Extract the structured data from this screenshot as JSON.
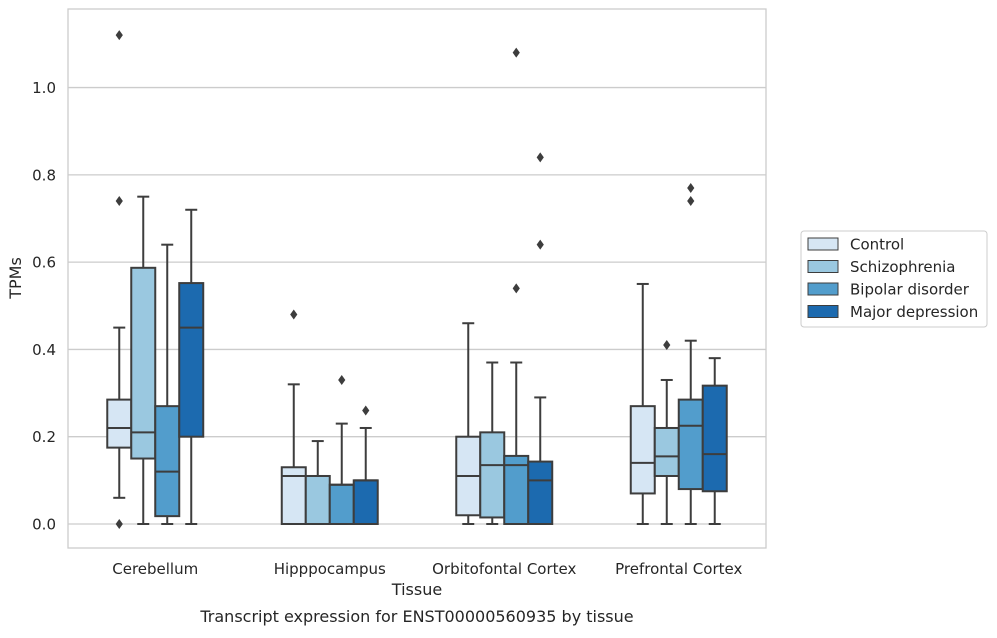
{
  "chart_data": {
    "type": "box",
    "title": "Transcript expression for ENST00000560935 by tissue",
    "xlabel": "Tissue",
    "ylabel": "TPMs",
    "ylim": [
      -0.055,
      1.18
    ],
    "yticks": [
      0.0,
      0.2,
      0.4,
      0.6,
      0.8,
      1.0
    ],
    "ytick_labels": [
      "0.0",
      "0.2",
      "0.4",
      "0.6",
      "0.8",
      "1.0"
    ],
    "grid": "horizontal",
    "legend_position": "right",
    "categories": [
      "Cerebellum",
      "Hipppocampus",
      "Orbitofontal Cortex",
      "Prefrontal Cortex"
    ],
    "series": [
      {
        "name": "Control",
        "color": "#d6e6f4",
        "boxes": [
          {
            "q1": 0.175,
            "median": 0.22,
            "q3": 0.285,
            "whislo": 0.06,
            "whishi": 0.45,
            "fliers": [
              0.74,
              1.12,
              0.0
            ]
          },
          {
            "q1": 0.0,
            "median": 0.11,
            "q3": 0.13,
            "whislo": 0.0,
            "whishi": 0.32,
            "fliers": [
              0.48
            ]
          },
          {
            "q1": 0.02,
            "median": 0.11,
            "q3": 0.2,
            "whislo": 0.0,
            "whishi": 0.46,
            "fliers": []
          },
          {
            "q1": 0.07,
            "median": 0.14,
            "q3": 0.27,
            "whislo": 0.0,
            "whishi": 0.55,
            "fliers": []
          }
        ]
      },
      {
        "name": "Schizophrenia",
        "color": "#9ac8e0",
        "boxes": [
          {
            "q1": 0.15,
            "median": 0.21,
            "q3": 0.587,
            "whislo": 0.0,
            "whishi": 0.75,
            "fliers": []
          },
          {
            "q1": 0.0,
            "median": 0.11,
            "q3": 0.11,
            "whislo": 0.0,
            "whishi": 0.19,
            "fliers": []
          },
          {
            "q1": 0.015,
            "median": 0.135,
            "q3": 0.21,
            "whislo": 0.0,
            "whishi": 0.37,
            "fliers": []
          },
          {
            "q1": 0.11,
            "median": 0.155,
            "q3": 0.22,
            "whislo": 0.0,
            "whishi": 0.33,
            "fliers": [
              0.41
            ]
          }
        ]
      },
      {
        "name": "Bipolar disorder",
        "color": "#529dcc",
        "boxes": [
          {
            "q1": 0.018,
            "median": 0.12,
            "q3": 0.27,
            "whislo": 0.0,
            "whishi": 0.64,
            "fliers": []
          },
          {
            "q1": 0.0,
            "median": 0.09,
            "q3": 0.09,
            "whislo": 0.0,
            "whishi": 0.23,
            "fliers": [
              0.33
            ]
          },
          {
            "q1": 0.0,
            "median": 0.135,
            "q3": 0.156,
            "whislo": 0.0,
            "whishi": 0.37,
            "fliers": [
              0.54,
              1.08
            ]
          },
          {
            "q1": 0.08,
            "median": 0.225,
            "q3": 0.285,
            "whislo": 0.0,
            "whishi": 0.42,
            "fliers": [
              0.74,
              0.77
            ]
          }
        ]
      },
      {
        "name": "Major depression",
        "color": "#1c6aaf",
        "boxes": [
          {
            "q1": 0.2,
            "median": 0.45,
            "q3": 0.552,
            "whislo": 0.0,
            "whishi": 0.72,
            "fliers": []
          },
          {
            "q1": 0.0,
            "median": 0.1,
            "q3": 0.1,
            "whislo": 0.0,
            "whishi": 0.22,
            "fliers": [
              0.26
            ]
          },
          {
            "q1": 0.0,
            "median": 0.1,
            "q3": 0.143,
            "whislo": 0.0,
            "whishi": 0.29,
            "fliers": [
              0.64,
              0.84
            ]
          },
          {
            "q1": 0.075,
            "median": 0.16,
            "q3": 0.317,
            "whislo": 0.0,
            "whishi": 0.38,
            "fliers": []
          }
        ]
      }
    ]
  }
}
